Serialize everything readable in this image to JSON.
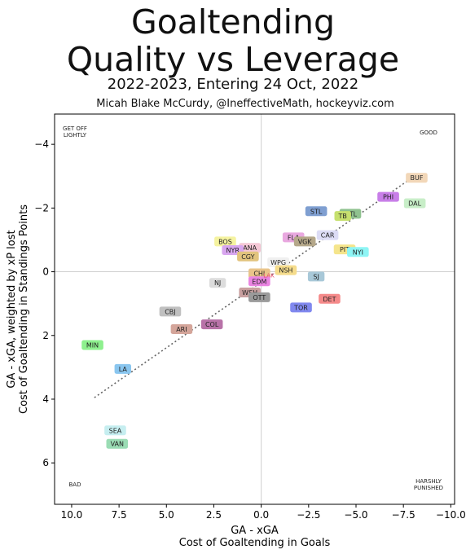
{
  "title_line_1": "Goaltending",
  "title_line_2": "Quality vs Leverage",
  "subtitle": "2022-2023, Entering 24 Oct, 2022",
  "credit": "Micah Blake McCurdy, @IneffectiveMath, hockeyviz.com",
  "chart_data": {
    "type": "scatter",
    "xlabel_line1": "GA - xGA",
    "xlabel_line2": "Cost of Goaltending in Goals",
    "ylabel_line1": "GA - xGA, weighted by xP lost",
    "ylabel_line2": "Cost of Goaltending in Standings Points",
    "xlim": [
      10.9,
      -10.2
    ],
    "ylim": [
      7.3,
      -4.95
    ],
    "x_ticks": [
      10.0,
      7.5,
      5.0,
      2.5,
      0.0,
      -2.5,
      -5.0,
      -7.5,
      -10.0
    ],
    "x_tick_labels": [
      "10.0",
      "7.5",
      "5.0",
      "2.5",
      "0.0",
      "−2.5",
      "−5.0",
      "−7.5",
      "−10.0"
    ],
    "y_ticks": [
      -4,
      -2,
      0,
      2,
      4,
      6
    ],
    "y_tick_labels": [
      "−4",
      "−2",
      "0",
      "2",
      "4",
      "6"
    ],
    "grid": false,
    "zero_lines": true,
    "trend_line": {
      "x": [
        8.8,
        -8.2
      ],
      "y": [
        3.95,
        -3.05
      ]
    },
    "corner_labels": {
      "top_left": [
        "GET OFF",
        "LIGHTLY"
      ],
      "top_right": [
        "GOOD"
      ],
      "bottom_left": [
        "BAD"
      ],
      "bottom_right": [
        "HARSHLY",
        "PUNISHED"
      ]
    },
    "points": [
      {
        "team": "BUF",
        "x": -8.2,
        "y": -2.95,
        "color": "#f2d7b8"
      },
      {
        "team": "DAL",
        "x": -8.1,
        "y": -2.15,
        "color": "#c8eec8"
      },
      {
        "team": "PHI",
        "x": -6.7,
        "y": -2.35,
        "color": "#c87ee8"
      },
      {
        "team": "STL",
        "x": -2.9,
        "y": -1.9,
        "color": "#7f9fd1"
      },
      {
        "team": "MTL",
        "x": -4.7,
        "y": -1.82,
        "color": "#8fc28f"
      },
      {
        "team": "TB",
        "x": -4.3,
        "y": -1.75,
        "color": "#c6e06e"
      },
      {
        "team": "CAR",
        "x": -3.5,
        "y": -1.15,
        "color": "#dcdcf5"
      },
      {
        "team": "FLA",
        "x": -1.7,
        "y": -1.08,
        "color": "#e9a8e0"
      },
      {
        "team": "VGK",
        "x": -2.3,
        "y": -0.95,
        "color": "#b5a88a"
      },
      {
        "team": "PIT",
        "x": -4.4,
        "y": -0.7,
        "color": "#f5e58c"
      },
      {
        "team": "NYI",
        "x": -5.1,
        "y": -0.62,
        "color": "#8ef5f5"
      },
      {
        "team": "BOS",
        "x": 1.9,
        "y": -0.95,
        "color": "#f5f3a0"
      },
      {
        "team": "ANA",
        "x": 0.6,
        "y": -0.75,
        "color": "#f5c8d6"
      },
      {
        "team": "NYR",
        "x": 1.5,
        "y": -0.68,
        "color": "#d8a6ef"
      },
      {
        "team": "CGY",
        "x": 0.7,
        "y": -0.48,
        "color": "#e2c47e"
      },
      {
        "team": "WPG",
        "x": -0.9,
        "y": -0.3,
        "color": "#f0f0f0"
      },
      {
        "team": "NSH",
        "x": -1.3,
        "y": -0.05,
        "color": "#f5dc8c"
      },
      {
        "team": "CHI",
        "x": 0.1,
        "y": 0.05,
        "color": "#e9c48a"
      },
      {
        "team": "SJ",
        "x": -2.9,
        "y": 0.15,
        "color": "#a8c8d8"
      },
      {
        "team": "NJ",
        "x": 2.3,
        "y": 0.35,
        "color": "#dcdcdc"
      },
      {
        "team": "EDM",
        "x": 0.1,
        "y": 0.3,
        "color": "#ea84e2"
      },
      {
        "team": "WSH",
        "x": 0.6,
        "y": 0.65,
        "color": "#c9a0a0"
      },
      {
        "team": "OTT",
        "x": 0.1,
        "y": 0.8,
        "color": "#9a9a9a"
      },
      {
        "team": "DET",
        "x": -3.6,
        "y": 0.85,
        "color": "#f58a8a"
      },
      {
        "team": "TOR",
        "x": -2.1,
        "y": 1.12,
        "color": "#8088ef"
      },
      {
        "team": "CBJ",
        "x": 4.8,
        "y": 1.25,
        "color": "#c0c0c0"
      },
      {
        "team": "COL",
        "x": 2.6,
        "y": 1.65,
        "color": "#b872a8"
      },
      {
        "team": "ARI",
        "x": 4.2,
        "y": 1.8,
        "color": "#d4a59a"
      },
      {
        "team": "MIN",
        "x": 8.9,
        "y": 2.3,
        "color": "#8ef08e"
      },
      {
        "team": "LA",
        "x": 7.3,
        "y": 3.05,
        "color": "#8ac6ef"
      },
      {
        "team": "SEA",
        "x": 7.7,
        "y": 4.98,
        "color": "#c6eef0"
      },
      {
        "team": "VAN",
        "x": 7.6,
        "y": 5.4,
        "color": "#9adcb4"
      }
    ],
    "note_labels": [
      {
        "text": "LAK",
        "x": -0.4,
        "y": 0.1,
        "color": "#e84a6a"
      }
    ]
  }
}
